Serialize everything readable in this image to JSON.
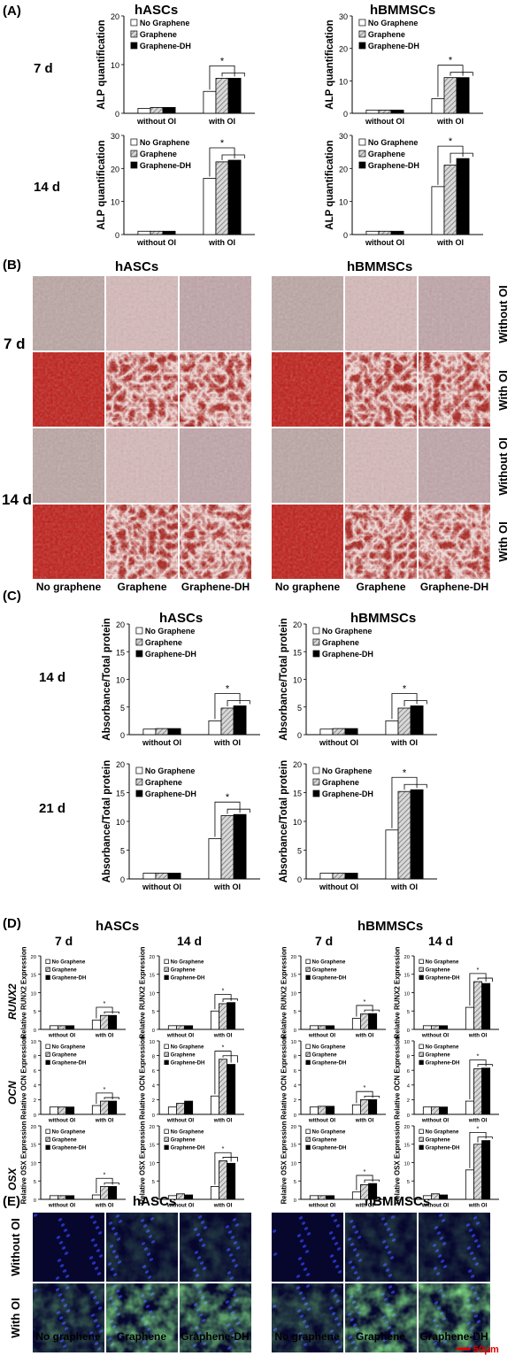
{
  "panels": {
    "A": "(A)",
    "B": "(B)",
    "C": "(C)",
    "D": "(D)",
    "E": "(E)"
  },
  "cells": {
    "left": "hASCs",
    "right": "hBMMSCs"
  },
  "days": {
    "d7": "7 d",
    "d14": "14 d",
    "d21": "21 d"
  },
  "legend": [
    "No Graphene",
    "Graphene",
    "Graphene-DH"
  ],
  "groups": [
    "without OI",
    "with OI"
  ],
  "significance": "*",
  "colors": {
    "no_graphene": "#ffffff",
    "graphene": "hatched-grey",
    "graphene_dh": "#000000",
    "panel_E_nuclei": "#1a2aa0",
    "panel_E_signal": "#3aa83a",
    "stain_with_oi": "#b81010",
    "stain_without_oi": "#d9c4c4",
    "scale_bar": "#e00000"
  },
  "panelB": {
    "columns": [
      "No graphene",
      "Graphene",
      "Graphene-DH"
    ],
    "rows": [
      "Without OI",
      "With OI"
    ]
  },
  "panelD": {
    "genes": [
      "RUNX2",
      "OCN",
      "OSX"
    ]
  },
  "panelE": {
    "columns": [
      "No graphene",
      "Graphene",
      "Graphene-DH"
    ],
    "rows": [
      "Without OI",
      "With OI"
    ],
    "scale_bar": "50μm"
  },
  "chart_data": [
    {
      "id": "A-hASC-7d",
      "type": "bar",
      "ylabel": "ALP quantification",
      "ylim": [
        0,
        20
      ],
      "yticks": [
        0,
        10,
        20
      ],
      "categories": [
        "without OI",
        "with OI"
      ],
      "series": [
        {
          "name": "No Graphene",
          "values": [
            1.0,
            4.5
          ]
        },
        {
          "name": "Graphene",
          "values": [
            1.2,
            7.2
          ]
        },
        {
          "name": "Graphene-DH",
          "values": [
            1.2,
            7.2
          ]
        }
      ]
    },
    {
      "id": "A-hBM-7d",
      "type": "bar",
      "ylabel": "ALP quantification",
      "ylim": [
        0,
        30
      ],
      "yticks": [
        0,
        10,
        20,
        30
      ],
      "categories": [
        "without OI",
        "with OI"
      ],
      "series": [
        {
          "name": "No Graphene",
          "values": [
            1.0,
            4.5
          ]
        },
        {
          "name": "Graphene",
          "values": [
            1.0,
            11
          ]
        },
        {
          "name": "Graphene-DH",
          "values": [
            1.0,
            11
          ]
        }
      ]
    },
    {
      "id": "A-hASC-14d",
      "type": "bar",
      "ylabel": "ALP quantification",
      "ylim": [
        0,
        30
      ],
      "yticks": [
        0,
        10,
        20,
        30
      ],
      "categories": [
        "without OI",
        "with OI"
      ],
      "series": [
        {
          "name": "No Graphene",
          "values": [
            1.0,
            17
          ]
        },
        {
          "name": "Graphene",
          "values": [
            1.0,
            22
          ]
        },
        {
          "name": "Graphene-DH",
          "values": [
            1.0,
            22.5
          ]
        }
      ]
    },
    {
      "id": "A-hBM-14d",
      "type": "bar",
      "ylabel": "ALP quantification",
      "ylim": [
        0,
        30
      ],
      "yticks": [
        0,
        10,
        20,
        30
      ],
      "categories": [
        "without OI",
        "with OI"
      ],
      "series": [
        {
          "name": "No Graphene",
          "values": [
            1.0,
            14.5
          ]
        },
        {
          "name": "Graphene",
          "values": [
            1.0,
            21
          ]
        },
        {
          "name": "Graphene-DH",
          "values": [
            1.0,
            23
          ]
        }
      ]
    },
    {
      "id": "C-hASC-14d",
      "type": "bar",
      "ylabel": "Absorbance/Total protein",
      "ylim": [
        0,
        20
      ],
      "yticks": [
        0,
        5,
        10,
        15,
        20
      ],
      "categories": [
        "without OI",
        "with OI"
      ],
      "series": [
        {
          "name": "No Graphene",
          "values": [
            1.0,
            2.5
          ]
        },
        {
          "name": "Graphene",
          "values": [
            1.1,
            4.8
          ]
        },
        {
          "name": "Graphene-DH",
          "values": [
            1.1,
            5.2
          ]
        }
      ]
    },
    {
      "id": "C-hBM-14d",
      "type": "bar",
      "ylabel": "Absorbance/Total protein",
      "ylim": [
        0,
        20
      ],
      "yticks": [
        0,
        5,
        10,
        15,
        20
      ],
      "categories": [
        "without OI",
        "with OI"
      ],
      "series": [
        {
          "name": "No Graphene",
          "values": [
            1.0,
            2.5
          ]
        },
        {
          "name": "Graphene",
          "values": [
            1.1,
            4.8
          ]
        },
        {
          "name": "Graphene-DH",
          "values": [
            1.1,
            5.2
          ]
        }
      ]
    },
    {
      "id": "C-hASC-21d",
      "type": "bar",
      "ylabel": "Absorbance/Total protein",
      "ylim": [
        0,
        20
      ],
      "yticks": [
        0,
        5,
        10,
        15,
        20
      ],
      "categories": [
        "without OI",
        "with OI"
      ],
      "series": [
        {
          "name": "No Graphene",
          "values": [
            1.0,
            7.0
          ]
        },
        {
          "name": "Graphene",
          "values": [
            1.0,
            11
          ]
        },
        {
          "name": "Graphene-DH",
          "values": [
            1.0,
            11.2
          ]
        }
      ]
    },
    {
      "id": "C-hBM-21d",
      "type": "bar",
      "ylabel": "Absorbance/Total protein",
      "ylim": [
        0,
        20
      ],
      "yticks": [
        0,
        5,
        10,
        15,
        20
      ],
      "categories": [
        "without OI",
        "with OI"
      ],
      "series": [
        {
          "name": "No Graphene",
          "values": [
            1.0,
            8.5
          ]
        },
        {
          "name": "Graphene",
          "values": [
            1.0,
            15.2
          ]
        },
        {
          "name": "Graphene-DH",
          "values": [
            1.0,
            15.5
          ]
        }
      ]
    },
    {
      "id": "D-hASC-7d-RUNX2",
      "type": "bar",
      "ylabel": "Relative RUNX2 Expression",
      "ylim": [
        0,
        20
      ],
      "yticks": [
        0,
        5,
        10,
        15,
        20
      ],
      "categories": [
        "without OI",
        "with OI"
      ],
      "series": [
        {
          "name": "No Graphene",
          "values": [
            1,
            2.5
          ]
        },
        {
          "name": "Graphene",
          "values": [
            1,
            3.8
          ]
        },
        {
          "name": "Graphene-DH",
          "values": [
            1,
            3.8
          ]
        }
      ]
    },
    {
      "id": "D-hASC-14d-RUNX2",
      "type": "bar",
      "ylabel": "Relative RUNX2 Expression",
      "ylim": [
        0,
        20
      ],
      "yticks": [
        0,
        5,
        10,
        15,
        20
      ],
      "categories": [
        "without OI",
        "with OI"
      ],
      "series": [
        {
          "name": "No Graphene",
          "values": [
            1,
            5
          ]
        },
        {
          "name": "Graphene",
          "values": [
            1,
            7
          ]
        },
        {
          "name": "Graphene-DH",
          "values": [
            1,
            7.3
          ]
        }
      ]
    },
    {
      "id": "D-hBM-7d-RUNX2",
      "type": "bar",
      "ylabel": "Relative RUNX2 Expression",
      "ylim": [
        0,
        20
      ],
      "yticks": [
        0,
        5,
        10,
        15,
        20
      ],
      "categories": [
        "without OI",
        "with OI"
      ],
      "series": [
        {
          "name": "No Graphene",
          "values": [
            1,
            3
          ]
        },
        {
          "name": "Graphene",
          "values": [
            1,
            4.2
          ]
        },
        {
          "name": "Graphene-DH",
          "values": [
            1,
            4.3
          ]
        }
      ]
    },
    {
      "id": "D-hBM-14d-RUNX2",
      "type": "bar",
      "ylabel": "Relative RUNX2 Expression",
      "ylim": [
        0,
        20
      ],
      "yticks": [
        0,
        5,
        10,
        15,
        20
      ],
      "categories": [
        "without OI",
        "with OI"
      ],
      "series": [
        {
          "name": "No Graphene",
          "values": [
            1,
            6
          ]
        },
        {
          "name": "Graphene",
          "values": [
            1,
            13
          ]
        },
        {
          "name": "Graphene-DH",
          "values": [
            1,
            12.5
          ]
        }
      ]
    },
    {
      "id": "D-hASC-7d-OCN",
      "type": "bar",
      "ylabel": "Relative OCN Expression",
      "ylim": [
        0,
        10
      ],
      "yticks": [
        0,
        2,
        4,
        6,
        8,
        10
      ],
      "categories": [
        "without OI",
        "with OI"
      ],
      "series": [
        {
          "name": "No Graphene",
          "values": [
            1,
            1.2
          ]
        },
        {
          "name": "Graphene",
          "values": [
            1,
            1.8
          ]
        },
        {
          "name": "Graphene-DH",
          "values": [
            1,
            1.8
          ]
        }
      ]
    },
    {
      "id": "D-hASC-14d-OCN",
      "type": "bar",
      "ylabel": "Relative OCN Expression",
      "ylim": [
        0,
        10
      ],
      "yticks": [
        0,
        2,
        4,
        6,
        8,
        10
      ],
      "categories": [
        "without OI",
        "with OI"
      ],
      "series": [
        {
          "name": "No Graphene",
          "values": [
            1,
            2.5
          ]
        },
        {
          "name": "Graphene",
          "values": [
            1.5,
            7.5
          ]
        },
        {
          "name": "Graphene-DH",
          "values": [
            1.8,
            6.8
          ]
        }
      ]
    },
    {
      "id": "D-hBM-7d-OCN",
      "type": "bar",
      "ylabel": "Relative OCN Expression",
      "ylim": [
        0,
        10
      ],
      "yticks": [
        0,
        2,
        4,
        6,
        8,
        10
      ],
      "categories": [
        "without OI",
        "with OI"
      ],
      "series": [
        {
          "name": "No Graphene",
          "values": [
            1,
            1.3
          ]
        },
        {
          "name": "Graphene",
          "values": [
            1.1,
            2
          ]
        },
        {
          "name": "Graphene-DH",
          "values": [
            1.1,
            2
          ]
        }
      ]
    },
    {
      "id": "D-hBM-14d-OCN",
      "type": "bar",
      "ylabel": "Relative OCN Expression",
      "ylim": [
        0,
        10
      ],
      "yticks": [
        0,
        2,
        4,
        6,
        8,
        10
      ],
      "categories": [
        "without OI",
        "with OI"
      ],
      "series": [
        {
          "name": "No Graphene",
          "values": [
            1,
            1.8
          ]
        },
        {
          "name": "Graphene",
          "values": [
            1,
            6.2
          ]
        },
        {
          "name": "Graphene-DH",
          "values": [
            1,
            6.3
          ]
        }
      ]
    },
    {
      "id": "D-hASC-7d-OSX",
      "type": "bar",
      "ylabel": "Relative OSX Expression",
      "ylim": [
        0,
        20
      ],
      "yticks": [
        0,
        5,
        10,
        15,
        20
      ],
      "categories": [
        "without OI",
        "with OI"
      ],
      "series": [
        {
          "name": "No Graphene",
          "values": [
            1,
            1.2
          ]
        },
        {
          "name": "Graphene",
          "values": [
            1,
            3.5
          ]
        },
        {
          "name": "Graphene-DH",
          "values": [
            1,
            3.5
          ]
        }
      ]
    },
    {
      "id": "D-hASC-14d-OSX",
      "type": "bar",
      "ylabel": "Relative OSX Expression",
      "ylim": [
        0,
        20
      ],
      "yticks": [
        0,
        5,
        10,
        15,
        20
      ],
      "categories": [
        "without OI",
        "with OI"
      ],
      "series": [
        {
          "name": "No Graphene",
          "values": [
            1,
            3.5
          ]
        },
        {
          "name": "Graphene",
          "values": [
            1.5,
            10.5
          ]
        },
        {
          "name": "Graphene-DH",
          "values": [
            1.2,
            9.8
          ]
        }
      ]
    },
    {
      "id": "D-hBM-7d-OSX",
      "type": "bar",
      "ylabel": "Relative OSX Expression",
      "ylim": [
        0,
        20
      ],
      "yticks": [
        0,
        5,
        10,
        15,
        20
      ],
      "categories": [
        "without OI",
        "with OI"
      ],
      "series": [
        {
          "name": "No Graphene",
          "values": [
            1,
            2
          ]
        },
        {
          "name": "Graphene",
          "values": [
            1,
            4
          ]
        },
        {
          "name": "Graphene-DH",
          "values": [
            1,
            4.3
          ]
        }
      ]
    },
    {
      "id": "D-hBM-14d-OSX",
      "type": "bar",
      "ylabel": "Relative OSX Expression",
      "ylim": [
        0,
        20
      ],
      "yticks": [
        0,
        5,
        10,
        15,
        20
      ],
      "categories": [
        "without OI",
        "with OI"
      ],
      "series": [
        {
          "name": "No Graphene",
          "values": [
            1,
            8
          ]
        },
        {
          "name": "Graphene",
          "values": [
            1.5,
            15
          ]
        },
        {
          "name": "Graphene-DH",
          "values": [
            1.2,
            16
          ]
        }
      ]
    }
  ]
}
